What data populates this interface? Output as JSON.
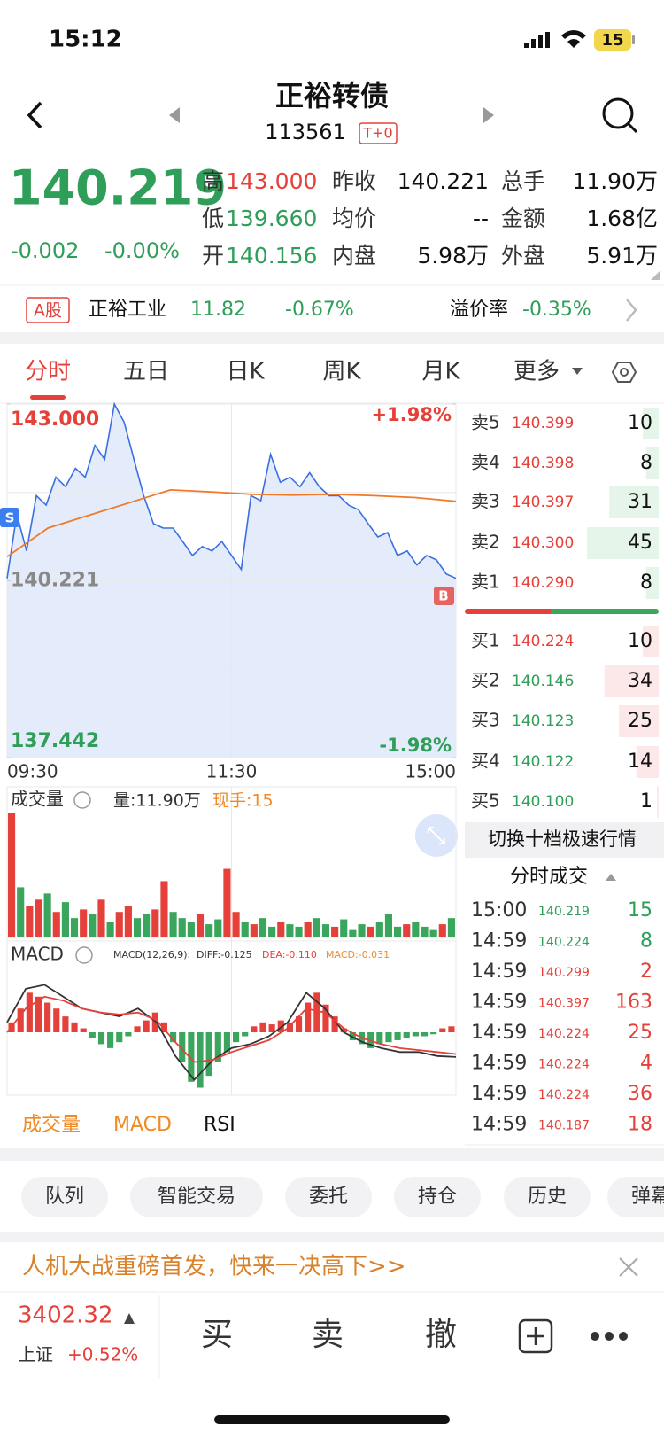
{
  "status_bar": {
    "time": "15:12",
    "battery": "15"
  },
  "header": {
    "title": "正裕转债",
    "code": "113561",
    "badge": "T+0"
  },
  "quote": {
    "price": "140.219",
    "change": "-0.002",
    "change_pct": "-0.00%",
    "fields": [
      {
        "label": "高",
        "value": "143.000",
        "color": "#e5403a"
      },
      {
        "label": "低",
        "value": "139.660",
        "color": "#2f9e58"
      },
      {
        "label": "开",
        "value": "140.156",
        "color": "#2f9e58"
      },
      {
        "label": "昨收",
        "value": "140.221"
      },
      {
        "label": "均价",
        "value": "--"
      },
      {
        "label": "内盘",
        "value": "5.98万"
      },
      {
        "label": "总手",
        "value": "11.90万"
      },
      {
        "label": "金额",
        "value": "1.68亿"
      },
      {
        "label": "外盘",
        "value": "5.91万"
      }
    ]
  },
  "stock": {
    "badge": "A股",
    "name": "正裕工业",
    "price": "11.82",
    "change_pct": "-0.67%",
    "premium_label": "溢价率",
    "premium": "-0.35%"
  },
  "tabs": [
    "分时",
    "五日",
    "日K",
    "周K",
    "月K",
    "更多"
  ],
  "chart_data": [
    {
      "type": "line",
      "ylim": [
        137.442,
        143.0
      ],
      "yticks": [
        {
          "value": 143.0,
          "label": "143.000"
        },
        {
          "value": 140.221,
          "label": "140.221"
        },
        {
          "value": 137.442,
          "label": "137.442"
        }
      ],
      "y2lim": [
        -1.98,
        1.98
      ],
      "y2ticks": [
        {
          "value": 1.98,
          "label": "+1.98%"
        },
        {
          "value": -1.98,
          "label": "-1.98%"
        }
      ],
      "xlim": [
        0,
        240
      ],
      "xticks": [
        {
          "value": 0,
          "label": "09:30"
        },
        {
          "value": 120,
          "label": "11:30"
        },
        {
          "value": 240,
          "label": "15:00"
        }
      ],
      "annotations": [
        "S",
        "B"
      ],
      "series": [
        {
          "color": "#3a6fe2",
          "values": [
            140.26,
            141.27,
            140.69,
            141.56,
            141.41,
            141.85,
            141.7,
            141.99,
            141.85,
            142.35,
            142.13,
            143.0,
            142.71,
            142.13,
            141.56,
            141.12,
            141.05,
            141.05,
            140.84,
            140.62,
            140.76,
            140.69,
            140.84,
            140.62,
            140.4,
            141.56,
            141.48,
            142.21,
            141.77,
            141.85,
            141.7,
            141.92,
            141.7,
            141.56,
            141.56,
            141.41,
            141.34,
            141.12,
            140.91,
            140.98,
            140.62,
            140.69,
            140.47,
            140.62,
            140.55,
            140.33,
            140.26
          ]
        },
        {
          "color": "#f07a28",
          "values": [
            140.6,
            141.05,
            141.25,
            141.45,
            141.65,
            141.62,
            141.58,
            141.57,
            141.58,
            141.56,
            141.53,
            141.47
          ]
        }
      ]
    },
    {
      "type": "bar",
      "title": "成交量",
      "volume_label": "量:11.90万",
      "current_label": "现手:15",
      "ylim": [
        0,
        100
      ],
      "values": [
        100,
        40,
        25,
        30,
        35,
        20,
        28,
        15,
        22,
        18,
        30,
        12,
        20,
        25,
        15,
        18,
        22,
        45,
        20,
        15,
        12,
        18,
        10,
        14,
        55,
        20,
        12,
        10,
        15,
        8,
        12,
        10,
        8,
        12,
        15,
        10,
        8,
        14,
        6,
        10,
        8,
        12,
        18,
        8,
        10,
        12,
        8,
        6,
        10,
        15
      ],
      "colors": [
        "#e5403a",
        "#3aa55c",
        "#e5403a",
        "#e5403a",
        "#3aa55c",
        "#e5403a",
        "#3aa55c",
        "#3aa55c",
        "#e5403a",
        "#3aa55c",
        "#e5403a",
        "#3aa55c",
        "#e5403a",
        "#e5403a",
        "#3aa55c",
        "#3aa55c",
        "#e5403a",
        "#e5403a",
        "#3aa55c",
        "#3aa55c",
        "#3aa55c",
        "#e5403a",
        "#3aa55c",
        "#3aa55c",
        "#e5403a",
        "#e5403a",
        "#3aa55c",
        "#e5403a",
        "#3aa55c",
        "#3aa55c",
        "#e5403a",
        "#3aa55c",
        "#3aa55c",
        "#e5403a",
        "#3aa55c",
        "#3aa55c",
        "#e5403a",
        "#3aa55c",
        "#3aa55c",
        "#3aa55c",
        "#e5403a",
        "#3aa55c",
        "#3aa55c",
        "#3aa55c",
        "#e5403a",
        "#3aa55c",
        "#3aa55c",
        "#3aa55c",
        "#e5403a",
        "#3aa55c"
      ]
    },
    {
      "type": "macd",
      "title": "MACD",
      "params": "MACD(12,26,9):",
      "dif_label": "DIFF:-0.125",
      "dea_label": "DEA:-0.110",
      "macd_label": "MACD:-0.031",
      "ylim": [
        -0.3,
        0.3
      ],
      "up_color": "#e5403a",
      "down_color": "#3aa55c",
      "histogram": [
        0.05,
        0.12,
        0.2,
        0.18,
        0.15,
        0.12,
        0.08,
        0.05,
        0.02,
        -0.03,
        -0.06,
        -0.08,
        -0.05,
        -0.02,
        0.03,
        0.06,
        0.1,
        0.05,
        -0.05,
        -0.15,
        -0.25,
        -0.28,
        -0.22,
        -0.15,
        -0.1,
        -0.05,
        -0.02,
        0.03,
        0.05,
        0.04,
        0.06,
        0.05,
        0.08,
        0.15,
        0.2,
        0.14,
        0.08,
        0.02,
        -0.04,
        -0.06,
        -0.08,
        -0.06,
        -0.05,
        -0.04,
        -0.03,
        -0.02,
        -0.02,
        -0.01,
        0.02,
        0.03
      ],
      "series": [
        {
          "color": "#333333",
          "values": [
            0.05,
            0.22,
            0.24,
            0.18,
            0.12,
            0.1,
            0.08,
            0.12,
            0.05,
            -0.12,
            -0.24,
            -0.14,
            -0.08,
            -0.06,
            -0.02,
            0.05,
            0.2,
            0.12,
            0.0,
            -0.05,
            -0.08,
            -0.1,
            -0.1,
            -0.12,
            -0.125
          ]
        },
        {
          "color": "#e5403a",
          "values": [
            0.0,
            0.12,
            0.18,
            0.16,
            0.12,
            0.1,
            0.09,
            0.1,
            0.06,
            -0.05,
            -0.15,
            -0.14,
            -0.1,
            -0.07,
            -0.04,
            0.02,
            0.12,
            0.1,
            0.02,
            -0.03,
            -0.06,
            -0.08,
            -0.09,
            -0.1,
            -0.11
          ]
        }
      ]
    }
  ],
  "order_book": {
    "asks": [
      {
        "label": "卖5",
        "price": "140.399",
        "volume": 10
      },
      {
        "label": "卖4",
        "price": "140.398",
        "volume": 8
      },
      {
        "label": "卖3",
        "price": "140.397",
        "volume": 31
      },
      {
        "label": "卖2",
        "price": "140.300",
        "volume": 45
      },
      {
        "label": "卖1",
        "price": "140.290",
        "volume": 8
      }
    ],
    "bids": [
      {
        "label": "买1",
        "price": "140.224",
        "volume": 10,
        "color": "#e5403a"
      },
      {
        "label": "买2",
        "price": "140.146",
        "volume": 34,
        "color": "#2f9e58"
      },
      {
        "label": "买3",
        "price": "140.123",
        "volume": 25,
        "color": "#2f9e58"
      },
      {
        "label": "买4",
        "price": "140.122",
        "volume": 14,
        "color": "#2f9e58"
      },
      {
        "label": "买5",
        "price": "140.100",
        "volume": 1,
        "color": "#2f9e58"
      }
    ]
  },
  "switch_button": "切换十档极速行情",
  "trades": {
    "title": "分时成交",
    "rows": [
      {
        "time": "15:00",
        "price": "140.219",
        "volume": 15,
        "color": "#2f9e58"
      },
      {
        "time": "14:59",
        "price": "140.224",
        "volume": 8,
        "color": "#2f9e58"
      },
      {
        "time": "14:59",
        "price": "140.299",
        "volume": 2,
        "color": "#e5403a"
      },
      {
        "time": "14:59",
        "price": "140.397",
        "volume": 163,
        "color": "#e5403a"
      },
      {
        "time": "14:59",
        "price": "140.224",
        "volume": 25,
        "color": "#e5403a"
      },
      {
        "time": "14:59",
        "price": "140.224",
        "volume": 4,
        "color": "#e5403a"
      },
      {
        "time": "14:59",
        "price": "140.224",
        "volume": 36,
        "color": "#e5403a"
      },
      {
        "time": "14:59",
        "price": "140.187",
        "volume": 18,
        "color": "#e5403a"
      }
    ]
  },
  "indicator_tabs": [
    "成交量",
    "MACD",
    "RSI"
  ],
  "actions": [
    "队列",
    "智能交易",
    "委托",
    "持仓",
    "历史",
    "弹幕"
  ],
  "banner": "人机大战重磅首发，快来一决高下>>",
  "index": {
    "value": "3402.32",
    "name": "上证",
    "change": "+0.52%"
  },
  "trade_buttons": [
    "买",
    "卖",
    "撤"
  ]
}
